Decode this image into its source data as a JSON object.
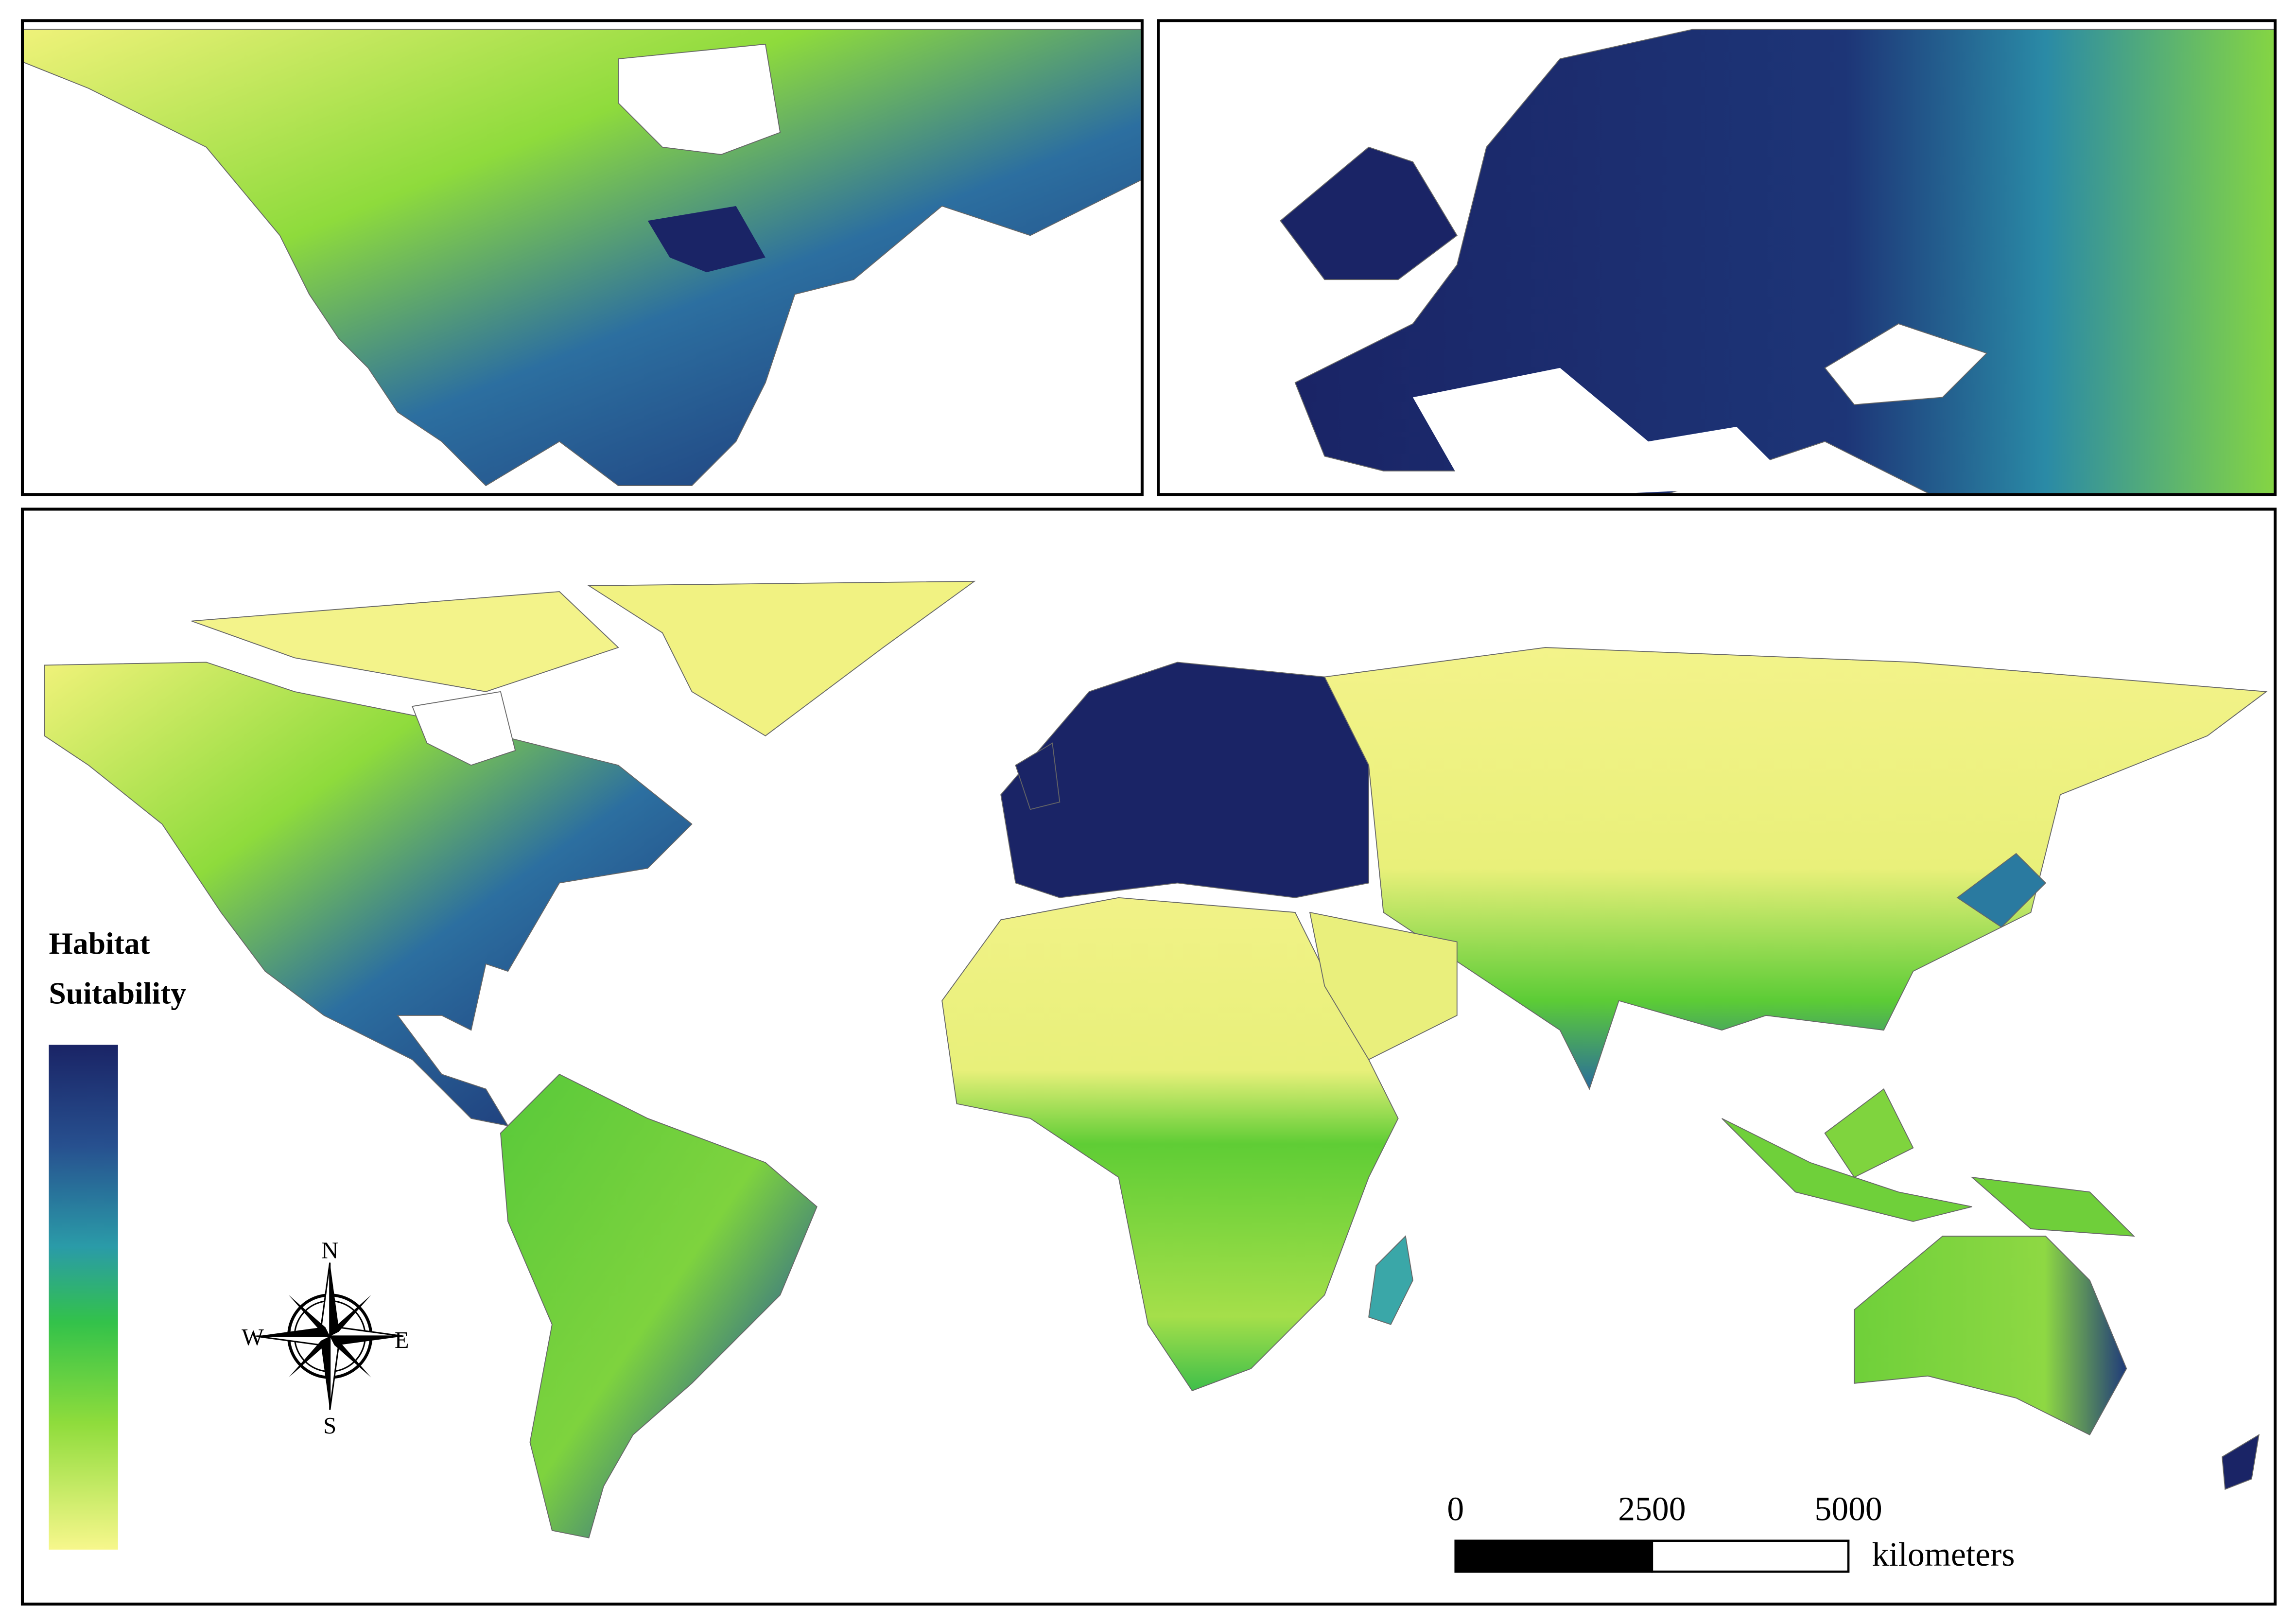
{
  "legend": {
    "title": [
      "Habitat",
      "Suitability"
    ]
  },
  "compass": {
    "n": "N",
    "e": "E",
    "s": "S",
    "w": "W"
  },
  "scale_bar": {
    "ticks": [
      0,
      2500,
      5000
    ],
    "unit": "kilometers"
  }
}
